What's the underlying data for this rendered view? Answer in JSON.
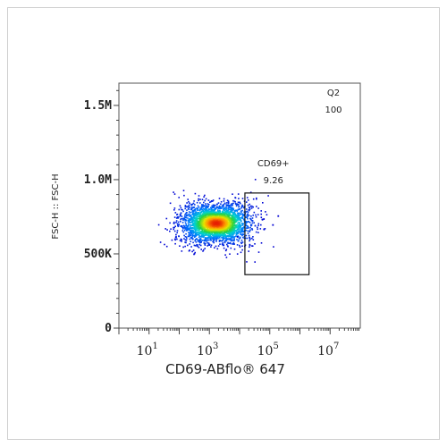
{
  "chart_data": {
    "type": "scatter",
    "subtype": "flow-cytometry-density-dot-plot",
    "xlabel": "CD69-ABflo® 647",
    "ylabel": "FSC-H :: FSC-H",
    "x_scale": "log",
    "x_ticks": [
      {
        "base": "10",
        "exp": "1",
        "value": 10
      },
      {
        "base": "10",
        "exp": "3",
        "value": 1000
      },
      {
        "base": "10",
        "exp": "5",
        "value": 100000
      },
      {
        "base": "10",
        "exp": "7",
        "value": 10000000
      }
    ],
    "xlim": [
      1,
      100000000
    ],
    "y_ticks": [
      {
        "label": "0",
        "value": 0
      },
      {
        "label": "500K",
        "value": 500000
      },
      {
        "label": "1.0M",
        "value": 1000000
      },
      {
        "label": "1.5M",
        "value": 1500000
      }
    ],
    "ylim": [
      0,
      1650000
    ],
    "population": {
      "center_x": 1600,
      "center_y": 710000,
      "log_spread_x": 0.55,
      "spread_y": 55000,
      "count": 3200
    },
    "gates": [
      {
        "name": "CD69+",
        "value": "9.26",
        "x_range": [
          15000,
          2000000
        ],
        "y_range": [
          360000,
          910000
        ]
      }
    ],
    "quadrant_label": {
      "name": "Q2",
      "value": "100"
    }
  }
}
